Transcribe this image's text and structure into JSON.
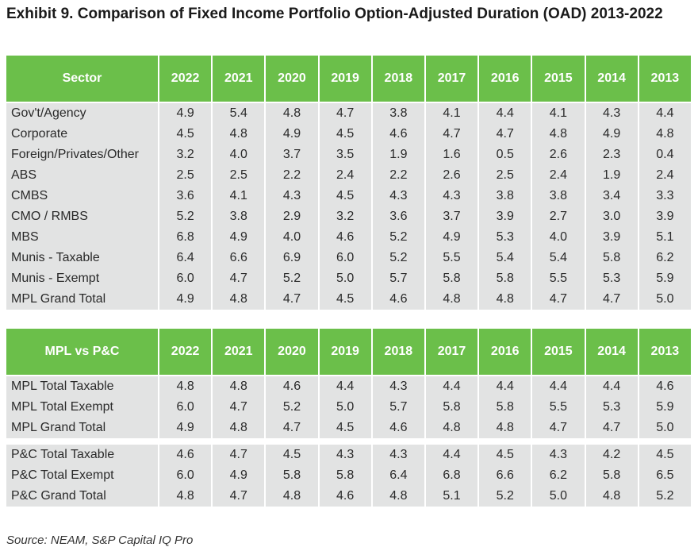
{
  "title": "Exhibit 9. Comparison of Fixed Income Portfolio Option-Adjusted Duration (OAD) 2013-2022",
  "years": [
    "2022",
    "2021",
    "2020",
    "2019",
    "2018",
    "2017",
    "2016",
    "2015",
    "2014",
    "2013"
  ],
  "table1": {
    "header": "Sector",
    "rows": [
      {
        "label": "Gov't/Agency",
        "values": [
          "4.9",
          "5.4",
          "4.8",
          "4.7",
          "3.8",
          "4.1",
          "4.4",
          "4.1",
          "4.3",
          "4.4"
        ]
      },
      {
        "label": "Corporate",
        "values": [
          "4.5",
          "4.8",
          "4.9",
          "4.5",
          "4.6",
          "4.7",
          "4.7",
          "4.8",
          "4.9",
          "4.8"
        ]
      },
      {
        "label": "Foreign/Privates/Other",
        "values": [
          "3.2",
          "4.0",
          "3.7",
          "3.5",
          "1.9",
          "1.6",
          "0.5",
          "2.6",
          "2.3",
          "0.4"
        ]
      },
      {
        "label": "ABS",
        "values": [
          "2.5",
          "2.5",
          "2.2",
          "2.4",
          "2.2",
          "2.6",
          "2.5",
          "2.4",
          "1.9",
          "2.4"
        ]
      },
      {
        "label": "CMBS",
        "values": [
          "3.6",
          "4.1",
          "4.3",
          "4.5",
          "4.3",
          "4.3",
          "3.8",
          "3.8",
          "3.4",
          "3.3"
        ]
      },
      {
        "label": "CMO / RMBS",
        "values": [
          "5.2",
          "3.8",
          "2.9",
          "3.2",
          "3.6",
          "3.7",
          "3.9",
          "2.7",
          "3.0",
          "3.9"
        ]
      },
      {
        "label": "MBS",
        "values": [
          "6.8",
          "4.9",
          "4.0",
          "4.6",
          "5.2",
          "4.9",
          "5.3",
          "4.0",
          "3.9",
          "5.1"
        ]
      },
      {
        "label": "Munis - Taxable",
        "values": [
          "6.4",
          "6.6",
          "6.9",
          "6.0",
          "5.2",
          "5.5",
          "5.4",
          "5.4",
          "5.8",
          "6.2"
        ]
      },
      {
        "label": "Munis - Exempt",
        "values": [
          "6.0",
          "4.7",
          "5.2",
          "5.0",
          "5.7",
          "5.8",
          "5.8",
          "5.5",
          "5.3",
          "5.9"
        ]
      },
      {
        "label": "MPL Grand Total",
        "values": [
          "4.9",
          "4.8",
          "4.7",
          "4.5",
          "4.6",
          "4.8",
          "4.8",
          "4.7",
          "4.7",
          "5.0"
        ]
      }
    ]
  },
  "table2": {
    "header": "MPL vs P&C",
    "groups": [
      [
        {
          "label": "MPL Total Taxable",
          "values": [
            "4.8",
            "4.8",
            "4.6",
            "4.4",
            "4.3",
            "4.4",
            "4.4",
            "4.4",
            "4.4",
            "4.6"
          ]
        },
        {
          "label": "MPL Total Exempt",
          "values": [
            "6.0",
            "4.7",
            "5.2",
            "5.0",
            "5.7",
            "5.8",
            "5.8",
            "5.5",
            "5.3",
            "5.9"
          ]
        },
        {
          "label": "MPL Grand Total",
          "values": [
            "4.9",
            "4.8",
            "4.7",
            "4.5",
            "4.6",
            "4.8",
            "4.8",
            "4.7",
            "4.7",
            "5.0"
          ]
        }
      ],
      [
        {
          "label": "P&C Total Taxable",
          "values": [
            "4.6",
            "4.7",
            "4.5",
            "4.3",
            "4.3",
            "4.4",
            "4.5",
            "4.3",
            "4.2",
            "4.5"
          ]
        },
        {
          "label": "P&C Total Exempt",
          "values": [
            "6.0",
            "4.9",
            "5.8",
            "5.8",
            "6.4",
            "6.8",
            "6.6",
            "6.2",
            "5.8",
            "6.5"
          ]
        },
        {
          "label": "P&C Grand Total",
          "values": [
            "4.8",
            "4.7",
            "4.8",
            "4.6",
            "4.8",
            "5.1",
            "5.2",
            "5.0",
            "4.8",
            "5.2"
          ]
        }
      ]
    ]
  },
  "source": "Source: NEAM, S&P Capital IQ Pro",
  "colors": {
    "header_bg": "#6bbf4a",
    "row_bg": "#e2e3e3"
  }
}
